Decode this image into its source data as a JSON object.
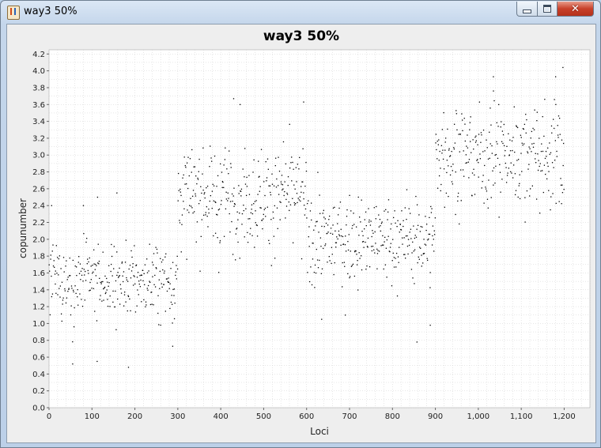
{
  "window": {
    "title": "way3 50%"
  },
  "colors": {
    "plot_background": "#ffffff",
    "gridline": "#cfcfcf",
    "point": "#000000",
    "panel": "#eeeeee"
  },
  "icons": {
    "app": "java-cup-icon",
    "minimize": "minimize-icon",
    "maximize": "maximize-icon",
    "close": "close-icon"
  },
  "chart_data": {
    "type": "scatter",
    "title": "way3 50%",
    "xlabel": "Loci",
    "ylabel": "copunumber",
    "xlim": [
      0,
      1260
    ],
    "ylim": [
      0,
      4.25
    ],
    "x_ticks": [
      0,
      100,
      200,
      300,
      400,
      500,
      600,
      700,
      800,
      900,
      1000,
      1100,
      1200
    ],
    "x_tick_labels": [
      "0",
      "100",
      "200",
      "300",
      "400",
      "500",
      "600",
      "700",
      "800",
      "900",
      "1,000",
      "1,100",
      "1,200"
    ],
    "y_ticks": [
      0,
      0.2,
      0.4,
      0.6,
      0.8,
      1.0,
      1.2,
      1.4,
      1.6,
      1.8,
      2.0,
      2.2,
      2.4,
      2.6,
      2.8,
      3.0,
      3.2,
      3.4,
      3.6,
      3.8,
      4.0,
      4.2
    ],
    "y_tick_labels": [
      "0.0",
      "0.2",
      "0.4",
      "0.6",
      "0.8",
      "1.0",
      "1.2",
      "1.4",
      "1.6",
      "1.8",
      "2.0",
      "2.2",
      "2.4",
      "2.6",
      "2.8",
      "3.0",
      "3.2",
      "3.4",
      "3.6",
      "3.8",
      "4.0",
      "4.2"
    ],
    "grid": true,
    "legend": "none",
    "segments": [
      {
        "x_start": 0,
        "x_end": 300,
        "mean": 1.5,
        "spread": 0.32
      },
      {
        "x_start": 300,
        "x_end": 600,
        "mean": 2.5,
        "spread": 0.42
      },
      {
        "x_start": 600,
        "x_end": 900,
        "mean": 2.0,
        "spread": 0.35
      },
      {
        "x_start": 900,
        "x_end": 1200,
        "mean": 3.0,
        "spread": 0.42
      }
    ],
    "notable_points": [
      {
        "x": 6,
        "y": 2.4
      },
      {
        "x": 80,
        "y": 2.4
      },
      {
        "x": 113,
        "y": 2.5
      },
      {
        "x": 158,
        "y": 2.55
      },
      {
        "x": 55,
        "y": 0.52
      },
      {
        "x": 112,
        "y": 0.55
      },
      {
        "x": 185,
        "y": 0.48
      },
      {
        "x": 288,
        "y": 0.73
      },
      {
        "x": 430,
        "y": 3.67
      },
      {
        "x": 445,
        "y": 3.6
      },
      {
        "x": 593,
        "y": 3.63
      },
      {
        "x": 635,
        "y": 1.05
      },
      {
        "x": 690,
        "y": 1.1
      },
      {
        "x": 857,
        "y": 0.78
      },
      {
        "x": 888,
        "y": 0.98
      },
      {
        "x": 1035,
        "y": 3.93
      },
      {
        "x": 1197,
        "y": 4.04
      },
      {
        "x": 1180,
        "y": 3.93
      }
    ]
  }
}
